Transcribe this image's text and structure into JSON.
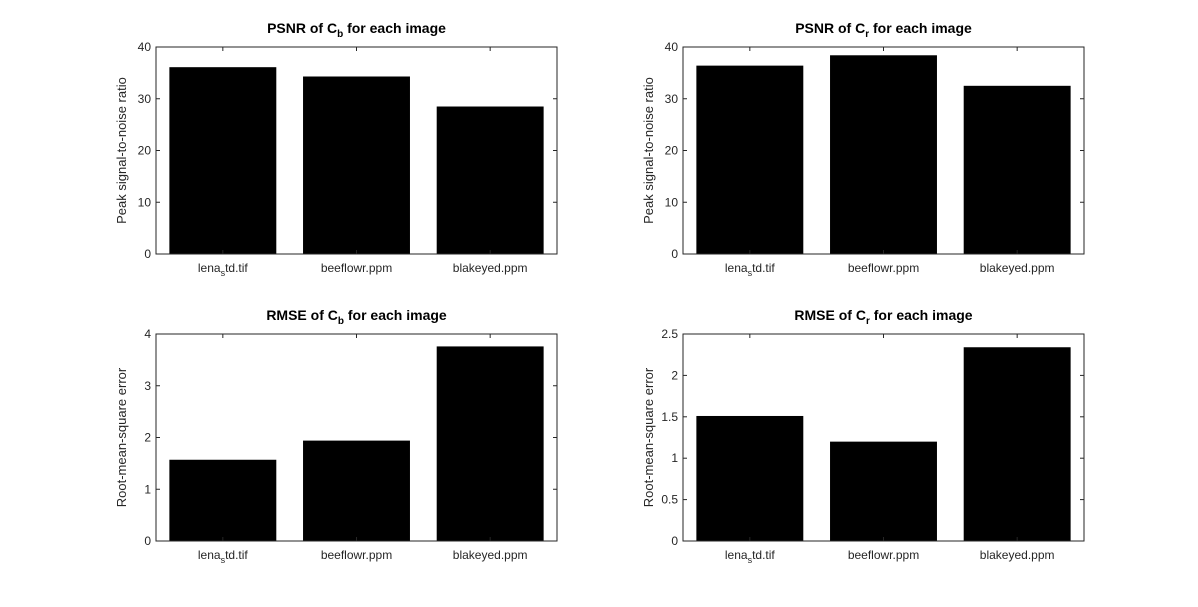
{
  "chart_data": [
    {
      "type": "bar",
      "title": {
        "main": "PSNR of C",
        "sub": "b",
        "suffix": " for each image"
      },
      "ylabel": "Peak signal-to-noise ratio",
      "categories": [
        {
          "main": "lena",
          "sub": "s",
          "suffix": "td.tif"
        },
        {
          "main": "beeflowr.ppm",
          "sub": "",
          "suffix": ""
        },
        {
          "main": "blakeyed.ppm",
          "sub": "",
          "suffix": ""
        }
      ],
      "values": [
        36.1,
        34.3,
        28.5
      ],
      "ylim": [
        0,
        40
      ],
      "yticks": [
        0,
        10,
        20,
        30,
        40
      ],
      "ytick_labels": [
        "0",
        "10",
        "20",
        "30",
        "40"
      ],
      "bar_color": "#000000",
      "grid": false
    },
    {
      "type": "bar",
      "title": {
        "main": "PSNR of C",
        "sub": "r",
        "suffix": " for each image"
      },
      "ylabel": "Peak signal-to-noise ratio",
      "categories": [
        {
          "main": "lena",
          "sub": "s",
          "suffix": "td.tif"
        },
        {
          "main": "beeflowr.ppm",
          "sub": "",
          "suffix": ""
        },
        {
          "main": "blakeyed.ppm",
          "sub": "",
          "suffix": ""
        }
      ],
      "values": [
        36.4,
        38.4,
        32.5
      ],
      "ylim": [
        0,
        40
      ],
      "yticks": [
        0,
        10,
        20,
        30,
        40
      ],
      "ytick_labels": [
        "0",
        "10",
        "20",
        "30",
        "40"
      ],
      "bar_color": "#000000",
      "grid": false
    },
    {
      "type": "bar",
      "title": {
        "main": "RMSE of C",
        "sub": "b",
        "suffix": " for each image"
      },
      "ylabel": "Root-mean-square error",
      "categories": [
        {
          "main": "lena",
          "sub": "s",
          "suffix": "td.tif"
        },
        {
          "main": "beeflowr.ppm",
          "sub": "",
          "suffix": ""
        },
        {
          "main": "blakeyed.ppm",
          "sub": "",
          "suffix": ""
        }
      ],
      "values": [
        1.57,
        1.94,
        3.76
      ],
      "ylim": [
        0,
        4
      ],
      "yticks": [
        0,
        1,
        2,
        3,
        4
      ],
      "ytick_labels": [
        "0",
        "1",
        "2",
        "3",
        "4"
      ],
      "bar_color": "#000000",
      "grid": false
    },
    {
      "type": "bar",
      "title": {
        "main": "RMSE of C",
        "sub": "r",
        "suffix": " for each image"
      },
      "ylabel": "Root-mean-square error",
      "categories": [
        {
          "main": "lena",
          "sub": "s",
          "suffix": "td.tif"
        },
        {
          "main": "beeflowr.ppm",
          "sub": "",
          "suffix": ""
        },
        {
          "main": "blakeyed.ppm",
          "sub": "",
          "suffix": ""
        }
      ],
      "values": [
        1.51,
        1.2,
        2.34
      ],
      "ylim": [
        0,
        2.5
      ],
      "yticks": [
        0,
        0.5,
        1,
        1.5,
        2,
        2.5
      ],
      "ytick_labels": [
        "0",
        "0.5",
        "1",
        "1.5",
        "2",
        "2.5"
      ],
      "bar_color": "#000000",
      "grid": false
    }
  ]
}
